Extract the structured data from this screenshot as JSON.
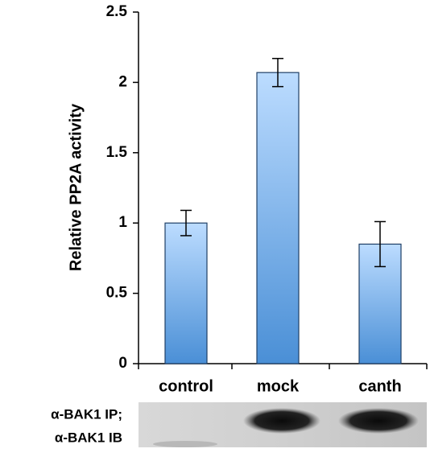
{
  "chart_data": {
    "type": "bar",
    "y_label": "Relative PP2A activity",
    "categories": [
      "control",
      "mock",
      "canth"
    ],
    "values": [
      1.0,
      2.07,
      0.85
    ],
    "errors": [
      0.09,
      0.1,
      0.16
    ],
    "color": "#4a90d9",
    "ylim": [
      0,
      2.5
    ],
    "yticks": [
      0,
      0.5,
      1,
      1.5,
      2,
      2.5
    ]
  },
  "blot": {
    "labels": [
      "α-BAK1 IP;",
      "α-BAK1 IB"
    ]
  }
}
